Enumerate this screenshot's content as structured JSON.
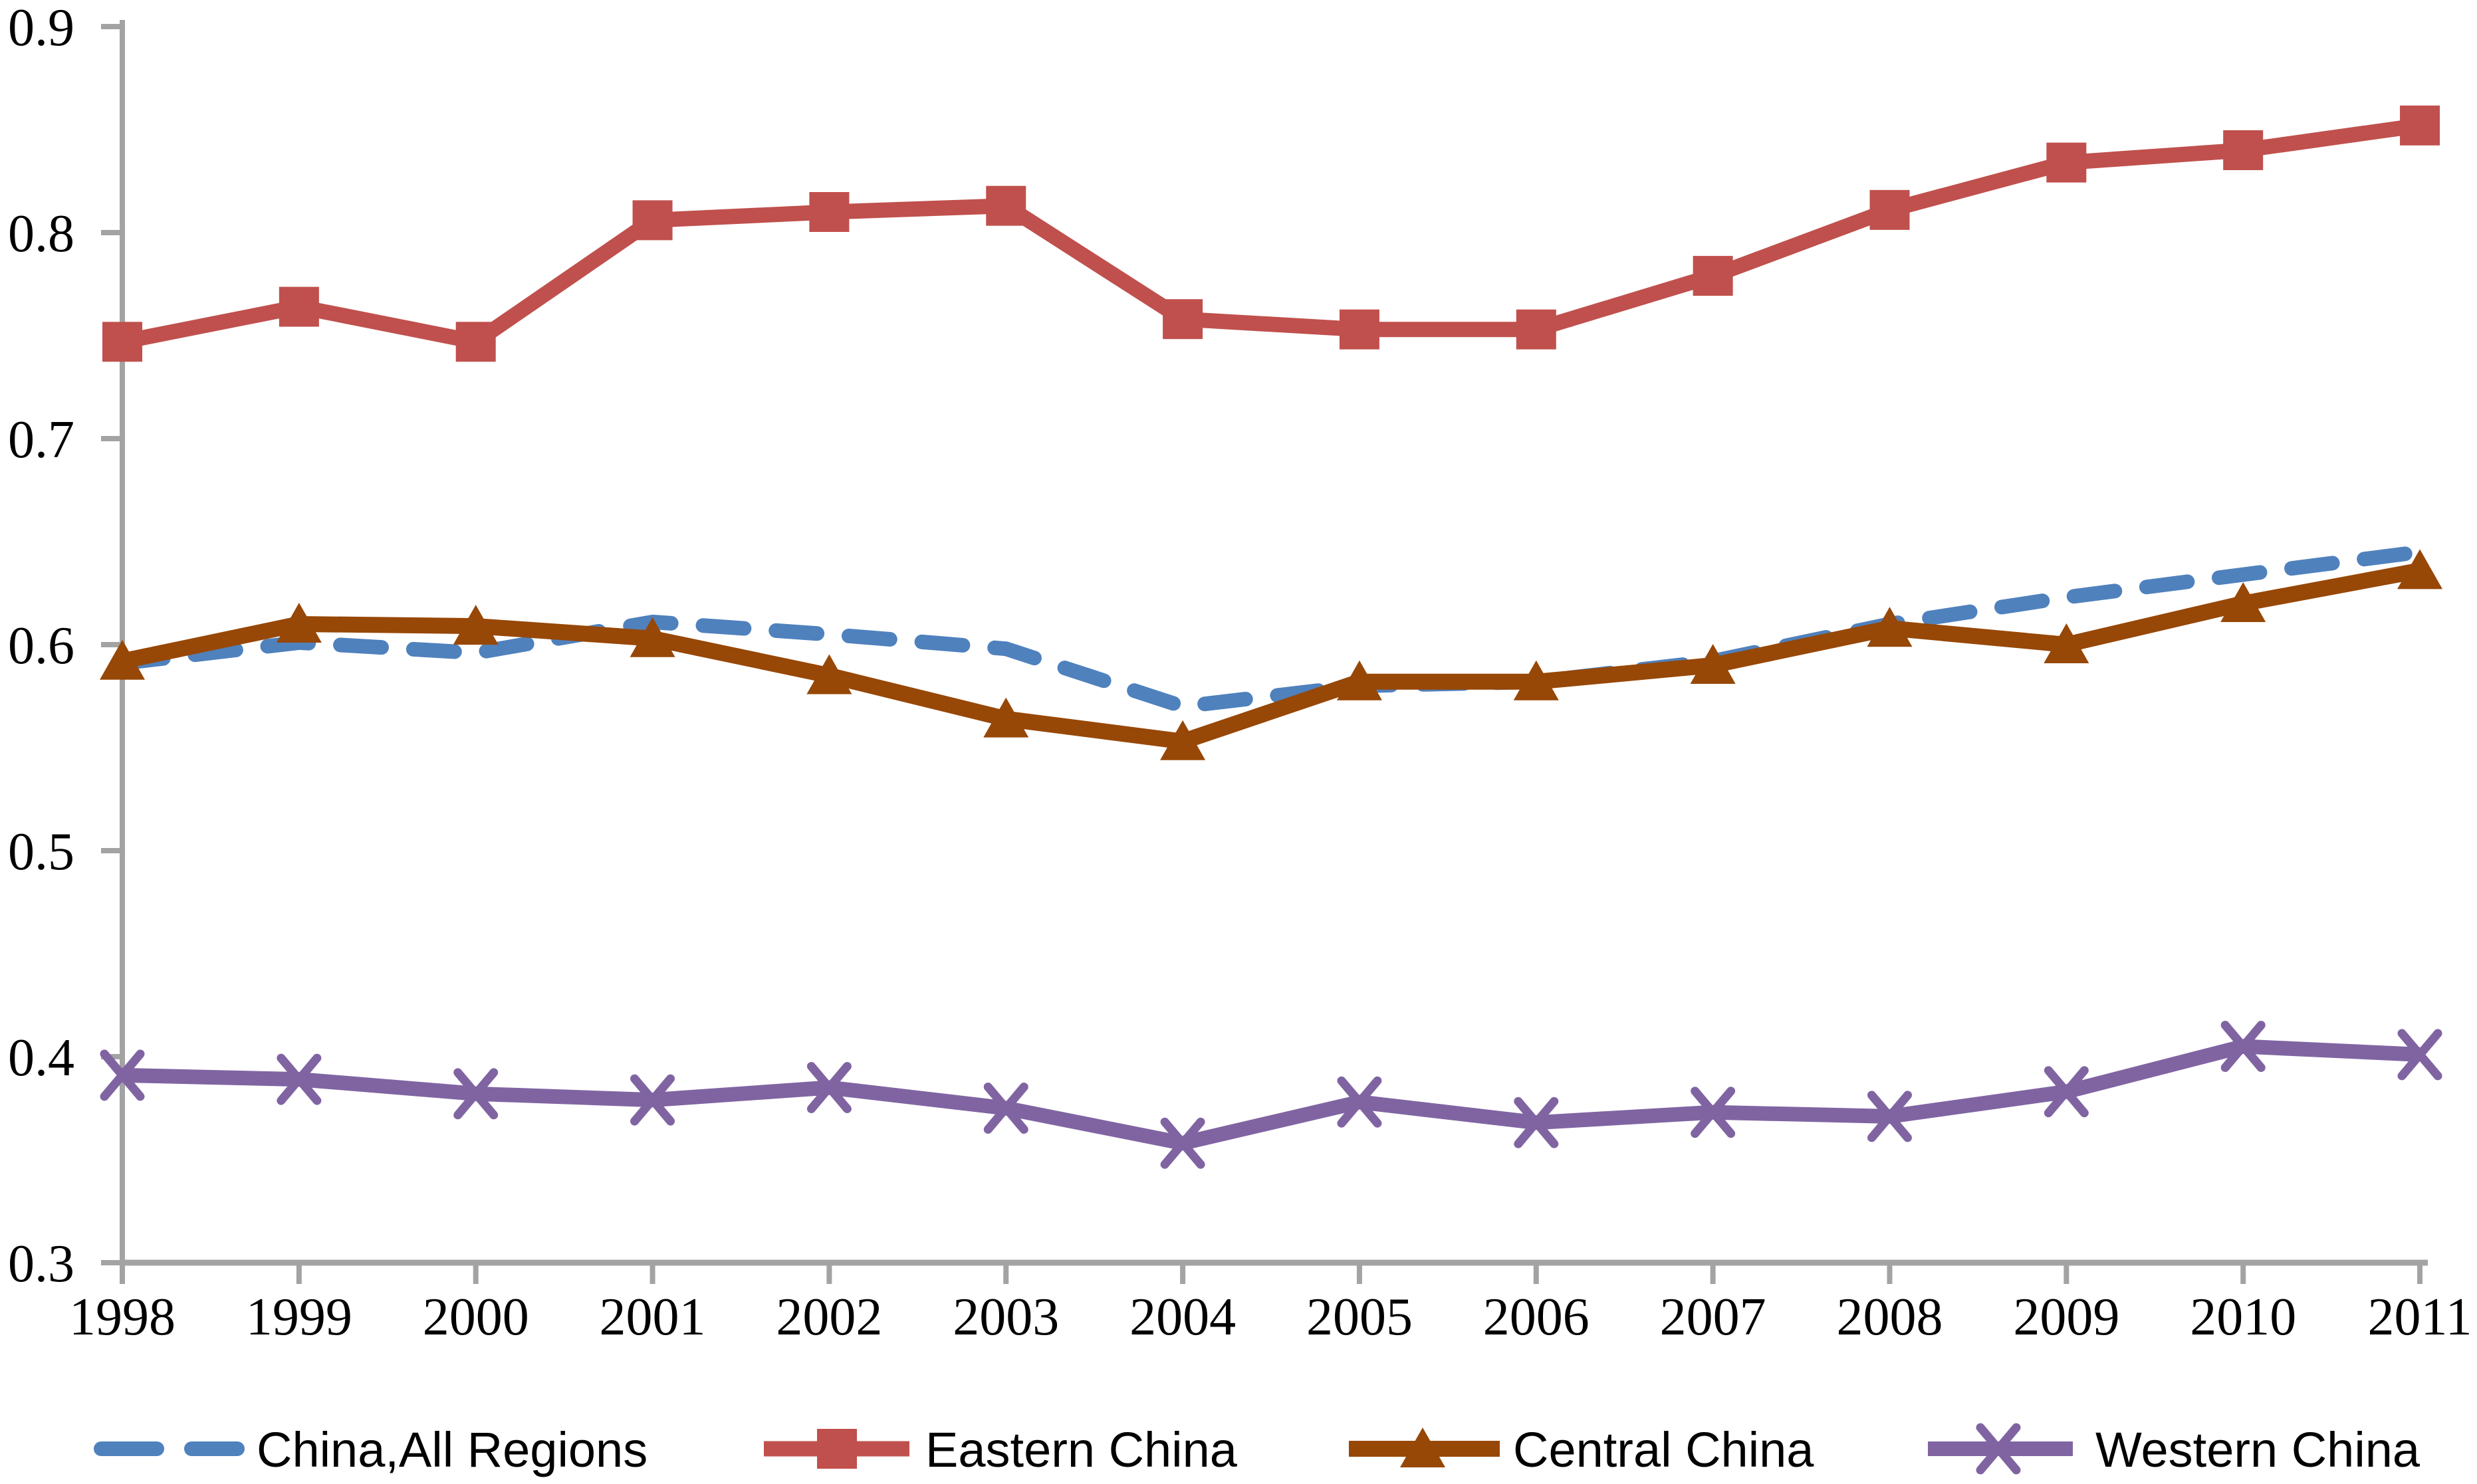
{
  "chart_data": {
    "type": "line",
    "title": "",
    "xlabel": "",
    "ylabel": "",
    "grid": false,
    "legend_position": "bottom",
    "axis_color": "#A3A3A3",
    "text_color": "#000000",
    "ylim": [
      0.3,
      0.9
    ],
    "ytick_step": 0.1,
    "ytick_labels": [
      "0.3",
      "0.4",
      "0.5",
      "0.6",
      "0.7",
      "0.8",
      "0.9"
    ],
    "x": [
      1998,
      1999,
      2000,
      2001,
      2002,
      2003,
      2004,
      2005,
      2006,
      2007,
      2008,
      2009,
      2010,
      2011
    ],
    "xtick_labels": [
      "1998",
      "1999",
      "2000",
      "2001",
      "2002",
      "2003",
      "2004",
      "2005",
      "2006",
      "2007",
      "2008",
      "2009",
      "2010",
      "2011"
    ],
    "series": [
      {
        "name": "China,All Regions",
        "color": "#4F81BD",
        "marker": "none",
        "dash": "62 48",
        "width": 22,
        "values": [
          0.591,
          0.601,
          0.596,
          0.611,
          0.605,
          0.598,
          0.57,
          0.58,
          0.582,
          0.592,
          0.61,
          0.623,
          0.634,
          0.645
        ]
      },
      {
        "name": "Eastern China",
        "color": "#C0504D",
        "marker": "square",
        "dash": null,
        "width": 23,
        "values": [
          0.747,
          0.764,
          0.747,
          0.806,
          0.81,
          0.813,
          0.758,
          0.753,
          0.753,
          0.779,
          0.811,
          0.834,
          0.84,
          0.852
        ]
      },
      {
        "name": "Central China",
        "color": "#974706",
        "marker": "triangle",
        "dash": null,
        "width": 24,
        "values": [
          0.592,
          0.61,
          0.609,
          0.603,
          0.585,
          0.564,
          0.553,
          0.582,
          0.582,
          0.59,
          0.608,
          0.6,
          0.62,
          0.636
        ]
      },
      {
        "name": "Western China",
        "color": "#8064A2",
        "marker": "x",
        "dash": null,
        "width": 22,
        "values": [
          0.391,
          0.389,
          0.382,
          0.379,
          0.385,
          0.375,
          0.358,
          0.378,
          0.368,
          0.373,
          0.371,
          0.383,
          0.405,
          0.401
        ]
      }
    ],
    "layout": {
      "x0": 184,
      "dx": 265.85,
      "y_bottom": 1900,
      "y_top": 40,
      "axis_x": 184,
      "y_axis_top": 30,
      "x_axis_end": 3652,
      "tick_len": 32,
      "axis_stroke": 8,
      "ylabel_x": 112,
      "ylabel_dy": 28,
      "xlabel_y": 2008,
      "font_tick": 80,
      "font_legend": 74,
      "legend_y": 2180,
      "legend_text_dy": 27,
      "legend_dash": "84 52",
      "legend_items": [
        {
          "line": [
            152,
            357
          ],
          "marker_x": null,
          "text_x": 386
        },
        {
          "line": [
            1149,
            1368
          ],
          "marker_x": 1259,
          "text_x": 1392
        },
        {
          "line": [
            2029,
            2256
          ],
          "marker_x": 2140,
          "text_x": 2276
        },
        {
          "line": [
            2900,
            3118
          ],
          "marker_x": 3006,
          "text_x": 3152
        }
      ]
    }
  }
}
